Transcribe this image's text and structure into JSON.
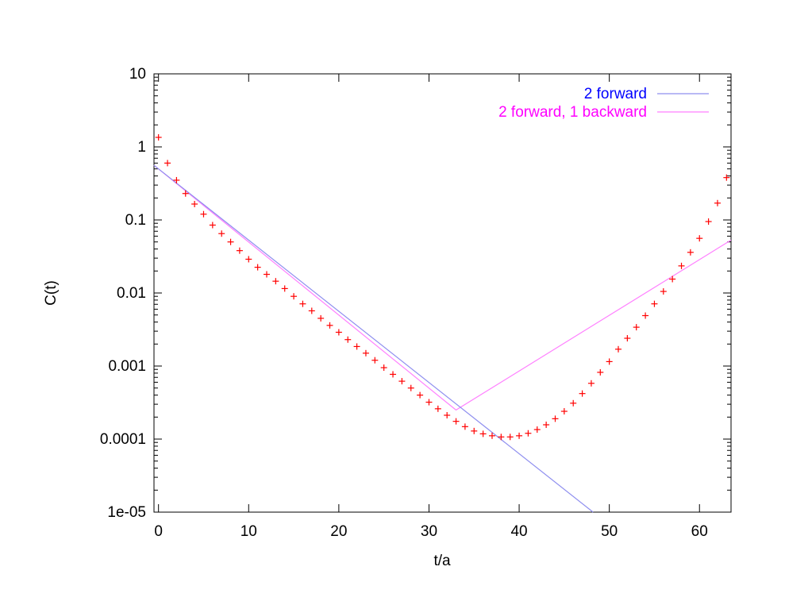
{
  "chart_data": {
    "type": "scatter",
    "title": "",
    "xlabel": "t/a",
    "ylabel": "C(t)",
    "xlim": [
      -0.5,
      63.5
    ],
    "ylim": [
      1e-05,
      10
    ],
    "y_scale": "log",
    "grid": false,
    "legend_position": "top-right",
    "x_ticks": [
      0,
      10,
      20,
      30,
      40,
      50,
      60
    ],
    "y_ticks": [
      {
        "value": 10,
        "label": "10"
      },
      {
        "value": 1,
        "label": "1"
      },
      {
        "value": 0.1,
        "label": "0.1"
      },
      {
        "value": 0.01,
        "label": "0.01"
      },
      {
        "value": 0.001,
        "label": "0.001"
      },
      {
        "value": 0.0001,
        "label": "0.0001"
      },
      {
        "value": 1e-05,
        "label": "1e-05"
      }
    ],
    "points": {
      "color": "#ff0000",
      "marker": "plus",
      "t": [
        0,
        1,
        2,
        3,
        4,
        5,
        6,
        7,
        8,
        9,
        10,
        11,
        12,
        13,
        14,
        15,
        16,
        17,
        18,
        19,
        20,
        21,
        22,
        23,
        24,
        25,
        26,
        27,
        28,
        29,
        30,
        31,
        32,
        33,
        34,
        35,
        36,
        37,
        38,
        39,
        40,
        41,
        42,
        43,
        44,
        45,
        46,
        47,
        48,
        49,
        50,
        51,
        52,
        53,
        54,
        55,
        56,
        57,
        58,
        59,
        60,
        61,
        62,
        63
      ],
      "C": [
        1.35,
        0.6,
        0.35,
        0.23,
        0.165,
        0.12,
        0.085,
        0.065,
        0.05,
        0.038,
        0.029,
        0.0225,
        0.018,
        0.0145,
        0.0115,
        0.009,
        0.0071,
        0.0057,
        0.0045,
        0.0036,
        0.0029,
        0.0023,
        0.00185,
        0.0015,
        0.0012,
        0.00095,
        0.00077,
        0.00062,
        0.0005,
        0.0004,
        0.00032,
        0.00026,
        0.000212,
        0.000175,
        0.000148,
        0.000129,
        0.000118,
        0.000111,
        0.000107,
        0.000107,
        0.000111,
        0.00012,
        0.000135,
        0.000157,
        0.00019,
        0.00024,
        0.00031,
        0.00042,
        0.00058,
        0.00082,
        0.00115,
        0.0017,
        0.0024,
        0.0034,
        0.0049,
        0.0071,
        0.0105,
        0.0155,
        0.0235,
        0.036,
        0.056,
        0.095,
        0.17,
        0.38
      ]
    },
    "series": [
      {
        "name": "2 forward",
        "label_color": "#0000ff",
        "line_color": "#8f8fef",
        "x": [
          -0.5,
          48.2
        ],
        "y": [
          0.56,
          1e-05
        ]
      },
      {
        "name": "2 forward, 1 backward",
        "label_color": "#ff00ff",
        "line_color": "#ff7fff",
        "x": [
          -0.5,
          33,
          63.5
        ],
        "y": [
          0.56,
          0.00025,
          0.053
        ]
      }
    ]
  }
}
